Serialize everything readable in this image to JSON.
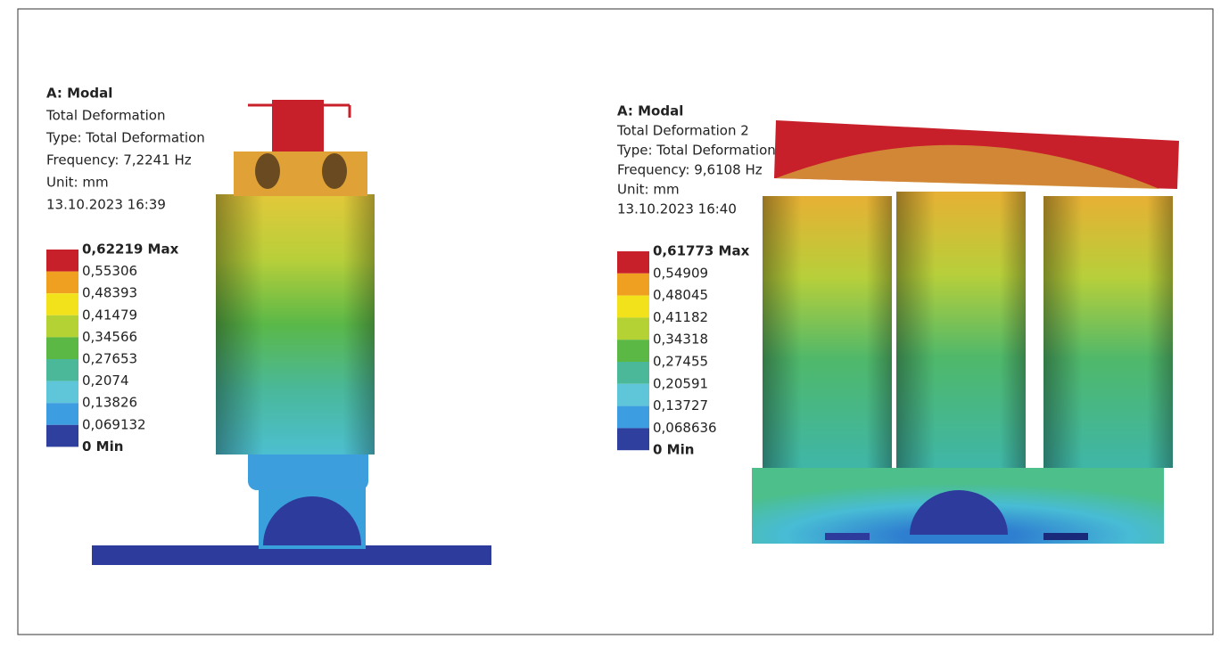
{
  "panels": [
    {
      "title": "A: Modal",
      "lines": [
        "Total Deformation",
        "Type: Total Deformation",
        "Frequency: 7,2241 Hz",
        "Unit: mm",
        "13.10.2023 16:39"
      ],
      "legend": [
        "0,62219 Max",
        "0,55306",
        "0,48393",
        "0,41479",
        "0,34566",
        "0,27653",
        "0,2074",
        "0,13826",
        "0,069132",
        "0 Min"
      ]
    },
    {
      "title": "A: Modal",
      "lines": [
        "Total Deformation 2",
        "Type: Total Deformation",
        "Frequency: 9,6108 Hz",
        "Unit: mm",
        "13.10.2023 16:40"
      ],
      "legend": [
        "0,61773 Max",
        "0,54909",
        "0,48045",
        "0,41182",
        "0,34318",
        "0,27455",
        "0,20591",
        "0,13727",
        "0,068636",
        "0 Min"
      ]
    }
  ]
}
